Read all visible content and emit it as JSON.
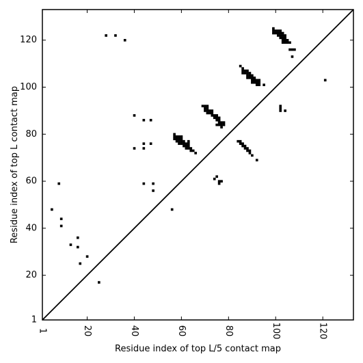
{
  "chart_data": {
    "type": "scatter",
    "title": "",
    "xlabel": "Residue index of top L/5 contact map",
    "ylabel": "Residue index of top L contact map",
    "xlim": [
      1,
      133
    ],
    "ylim": [
      1,
      133
    ],
    "xticks": [
      1,
      20,
      40,
      60,
      80,
      100,
      120
    ],
    "yticks": [
      1,
      20,
      40,
      60,
      80,
      100,
      120
    ],
    "xtick_labels": [
      "1",
      "20",
      "40",
      "60",
      "80",
      "100",
      "120"
    ],
    "ytick_labels": [
      "1",
      "20",
      "40",
      "60",
      "80",
      "100",
      "120"
    ],
    "diagonal": true,
    "grid": false,
    "color": "#000000",
    "points": [
      [
        28,
        122
      ],
      [
        32,
        122
      ],
      [
        36,
        120
      ],
      [
        5,
        48
      ],
      [
        8,
        59
      ],
      [
        9,
        44
      ],
      [
        9,
        41
      ],
      [
        13,
        33
      ],
      [
        16,
        36
      ],
      [
        16,
        32
      ],
      [
        17,
        25
      ],
      [
        20,
        28
      ],
      [
        25,
        17
      ],
      [
        40,
        88
      ],
      [
        44,
        86
      ],
      [
        47,
        86
      ],
      [
        40,
        74
      ],
      [
        44,
        76
      ],
      [
        44,
        74
      ],
      [
        47,
        76
      ],
      [
        44,
        59
      ],
      [
        48,
        59
      ],
      [
        48,
        56
      ],
      [
        56,
        48
      ],
      [
        57,
        80
      ],
      [
        57,
        79
      ],
      [
        57,
        78
      ],
      [
        58,
        79
      ],
      [
        58,
        78
      ],
      [
        58,
        77
      ],
      [
        59,
        79
      ],
      [
        59,
        78
      ],
      [
        59,
        77
      ],
      [
        59,
        76
      ],
      [
        60,
        79
      ],
      [
        60,
        78
      ],
      [
        60,
        77
      ],
      [
        60,
        76
      ],
      [
        61,
        77
      ],
      [
        61,
        76
      ],
      [
        61,
        75
      ],
      [
        62,
        76
      ],
      [
        62,
        75
      ],
      [
        62,
        74
      ],
      [
        63,
        77
      ],
      [
        63,
        76
      ],
      [
        63,
        75
      ],
      [
        63,
        74
      ],
      [
        64,
        74
      ],
      [
        64,
        73
      ],
      [
        65,
        73
      ],
      [
        66,
        72
      ],
      [
        69,
        92
      ],
      [
        70,
        92
      ],
      [
        70,
        91
      ],
      [
        70,
        90
      ],
      [
        71,
        92
      ],
      [
        71,
        91
      ],
      [
        71,
        90
      ],
      [
        71,
        89
      ],
      [
        72,
        90
      ],
      [
        72,
        89
      ],
      [
        73,
        90
      ],
      [
        73,
        89
      ],
      [
        73,
        88
      ],
      [
        74,
        88
      ],
      [
        74,
        87
      ],
      [
        75,
        88
      ],
      [
        75,
        87
      ],
      [
        75,
        86
      ],
      [
        76,
        87
      ],
      [
        76,
        86
      ],
      [
        76,
        85
      ],
      [
        75,
        84
      ],
      [
        76,
        84
      ],
      [
        77,
        85
      ],
      [
        77,
        84
      ],
      [
        77,
        83
      ],
      [
        78,
        85
      ],
      [
        78,
        84
      ],
      [
        74,
        61
      ],
      [
        75,
        62
      ],
      [
        76,
        60
      ],
      [
        77,
        60
      ],
      [
        76,
        59
      ],
      [
        84,
        77
      ],
      [
        85,
        77
      ],
      [
        85,
        76
      ],
      [
        86,
        76
      ],
      [
        86,
        75
      ],
      [
        87,
        75
      ],
      [
        87,
        74
      ],
      [
        88,
        74
      ],
      [
        88,
        73
      ],
      [
        89,
        73
      ],
      [
        89,
        72
      ],
      [
        90,
        71
      ],
      [
        92,
        69
      ],
      [
        85,
        109
      ],
      [
        86,
        108
      ],
      [
        86,
        107
      ],
      [
        86,
        106
      ],
      [
        87,
        107
      ],
      [
        87,
        106
      ],
      [
        88,
        107
      ],
      [
        88,
        106
      ],
      [
        88,
        105
      ],
      [
        88,
        104
      ],
      [
        89,
        106
      ],
      [
        89,
        105
      ],
      [
        89,
        104
      ],
      [
        90,
        105
      ],
      [
        90,
        104
      ],
      [
        90,
        103
      ],
      [
        90,
        102
      ],
      [
        91,
        104
      ],
      [
        91,
        103
      ],
      [
        91,
        102
      ],
      [
        92,
        103
      ],
      [
        92,
        102
      ],
      [
        92,
        101
      ],
      [
        93,
        103
      ],
      [
        93,
        102
      ],
      [
        93,
        101
      ],
      [
        95,
        101
      ],
      [
        99,
        125
      ],
      [
        99,
        124
      ],
      [
        99,
        123
      ],
      [
        100,
        124
      ],
      [
        100,
        123
      ],
      [
        101,
        124
      ],
      [
        101,
        123
      ],
      [
        101,
        122
      ],
      [
        102,
        124
      ],
      [
        102,
        123
      ],
      [
        102,
        122
      ],
      [
        102,
        121
      ],
      [
        103,
        123
      ],
      [
        103,
        122
      ],
      [
        103,
        121
      ],
      [
        103,
        120
      ],
      [
        103,
        119
      ],
      [
        104,
        122
      ],
      [
        104,
        121
      ],
      [
        104,
        120
      ],
      [
        104,
        119
      ],
      [
        105,
        120
      ],
      [
        105,
        119
      ],
      [
        106,
        119
      ],
      [
        106,
        116
      ],
      [
        107,
        116
      ],
      [
        108,
        116
      ],
      [
        107,
        113
      ],
      [
        102,
        92
      ],
      [
        102,
        91
      ],
      [
        102,
        90
      ],
      [
        104,
        90
      ],
      [
        121,
        103
      ]
    ]
  }
}
